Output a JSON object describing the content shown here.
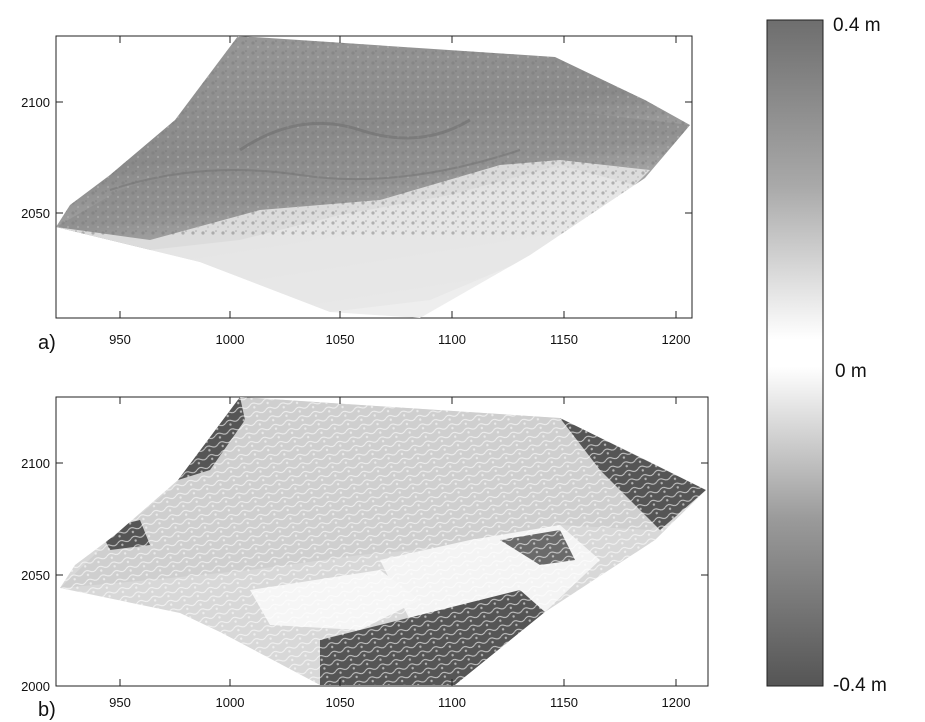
{
  "panels": [
    {
      "letter": "a)",
      "x_ticks": [
        "950",
        "1000",
        "1050",
        "1100",
        "1150",
        "1200"
      ],
      "y_ticks": [
        "2100",
        "2050"
      ]
    },
    {
      "letter": "b)",
      "x_ticks": [
        "950",
        "1000",
        "1050",
        "1100",
        "1150",
        "1200"
      ],
      "y_ticks": [
        "2100",
        "2050",
        "2000"
      ]
    }
  ],
  "colorbar": {
    "top_label": "0.4 m",
    "mid_label": "0 m",
    "bottom_label": "-0.4 m",
    "colors": {
      "high": "#6e6e6e",
      "mid": "#ffffff",
      "low": "#555555"
    }
  }
}
